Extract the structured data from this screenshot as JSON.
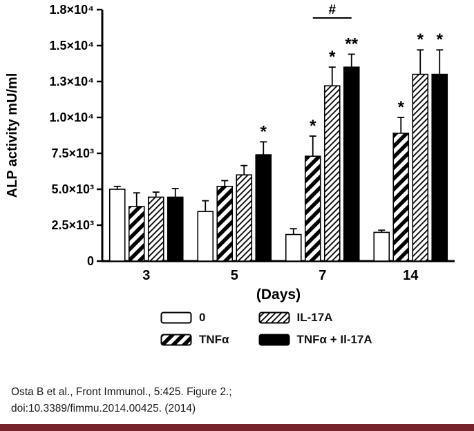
{
  "colors": {
    "ink": "#000000",
    "background": "#ffffff",
    "bottom_bar": "#76242c"
  },
  "citation": {
    "line1": "Osta B et al., Front Immunol., 5:425. Figure 2.;",
    "line2": "doi:10.3389/fimmu.2014.00425. (2014)"
  },
  "legend": {
    "items": [
      {
        "label": "0",
        "pattern": "white"
      },
      {
        "label": "IL-17A",
        "pattern": "stripes-fine"
      },
      {
        "label": "TNFα",
        "pattern": "stripes-bold"
      },
      {
        "label": "TNFα + Il-17A",
        "pattern": "solid"
      }
    ]
  },
  "chart_data": {
    "type": "bar",
    "title": "",
    "xlabel": "(Days)",
    "ylabel": "ALP activity mU/ml",
    "categories": [
      "3",
      "5",
      "7",
      "14"
    ],
    "ylim": [
      0,
      17500
    ],
    "grid": false,
    "legend_position": "bottom",
    "yticks": [
      {
        "value": 0,
        "label": "0"
      },
      {
        "value": 2500,
        "label": "2.5×10³"
      },
      {
        "value": 5000,
        "label": "5.0×10³"
      },
      {
        "value": 7500,
        "label": "7.5×10³"
      },
      {
        "value": 10000,
        "label": "1.0×10⁴"
      },
      {
        "value": 12500,
        "label": "1.3×10⁴"
      },
      {
        "value": 15000,
        "label": "1.5×10⁴"
      },
      {
        "value": 17500,
        "label": "1.8×10⁴"
      }
    ],
    "series": [
      {
        "name": "0",
        "pattern": "white",
        "values": [
          5000,
          3450,
          1850,
          2000
        ],
        "errors": [
          200,
          750,
          400,
          150
        ],
        "sig": [
          "",
          "",
          "",
          ""
        ]
      },
      {
        "name": "TNFα",
        "pattern": "stripes-bold",
        "values": [
          3800,
          5200,
          7300,
          8900
        ],
        "errors": [
          950,
          400,
          1400,
          1100
        ],
        "sig": [
          "",
          "",
          "*",
          "*"
        ]
      },
      {
        "name": "IL-17A",
        "pattern": "stripes-fine",
        "values": [
          4450,
          6000,
          12200,
          13000
        ],
        "errors": [
          350,
          650,
          1300,
          1700
        ],
        "sig": [
          "",
          "",
          "*",
          "*"
        ]
      },
      {
        "name": "TNFα + Il-17A",
        "pattern": "solid",
        "values": [
          4450,
          7400,
          13500,
          13000
        ],
        "errors": [
          600,
          900,
          900,
          1700
        ],
        "sig": [
          "",
          "*",
          "**",
          "*"
        ]
      }
    ],
    "annotation": {
      "symbol": "#",
      "group_index": 2,
      "from_series": 1,
      "to_series": 3
    }
  }
}
